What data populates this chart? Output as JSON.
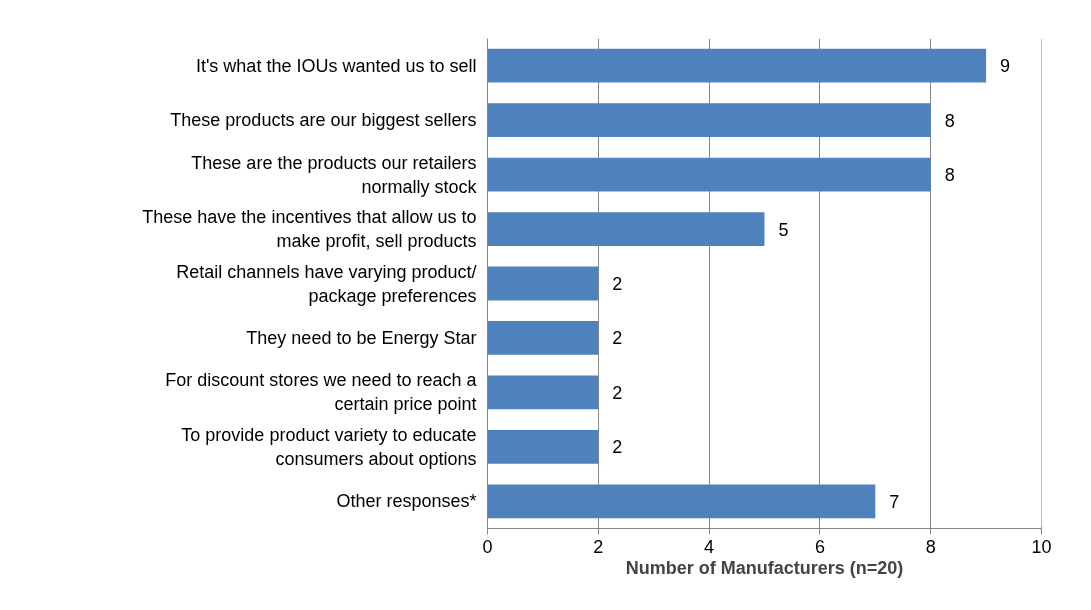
{
  "chart_data": {
    "type": "bar",
    "orientation": "horizontal",
    "xlabel": "Number of Manufacturers (n=20)",
    "categories": [
      "It's what the IOUs wanted us to sell",
      "These products are our biggest sellers",
      "These are the products our retailers\nnormally stock",
      "These have the incentives that allow us to\nmake profit, sell products",
      "Retail channels have varying product/\npackage preferences",
      "They need to be Energy Star",
      "For discount stores we need to reach a\ncertain price point",
      "To provide product variety to educate\nconsumers about options",
      "Other responses*"
    ],
    "values": [
      9,
      8,
      8,
      5,
      2,
      2,
      2,
      2,
      7
    ],
    "color": "#4f81bd",
    "xlim": [
      0,
      10
    ],
    "xticks": [
      0,
      2,
      4,
      6,
      8,
      10
    ],
    "grid": "x",
    "data_labels": true
  }
}
